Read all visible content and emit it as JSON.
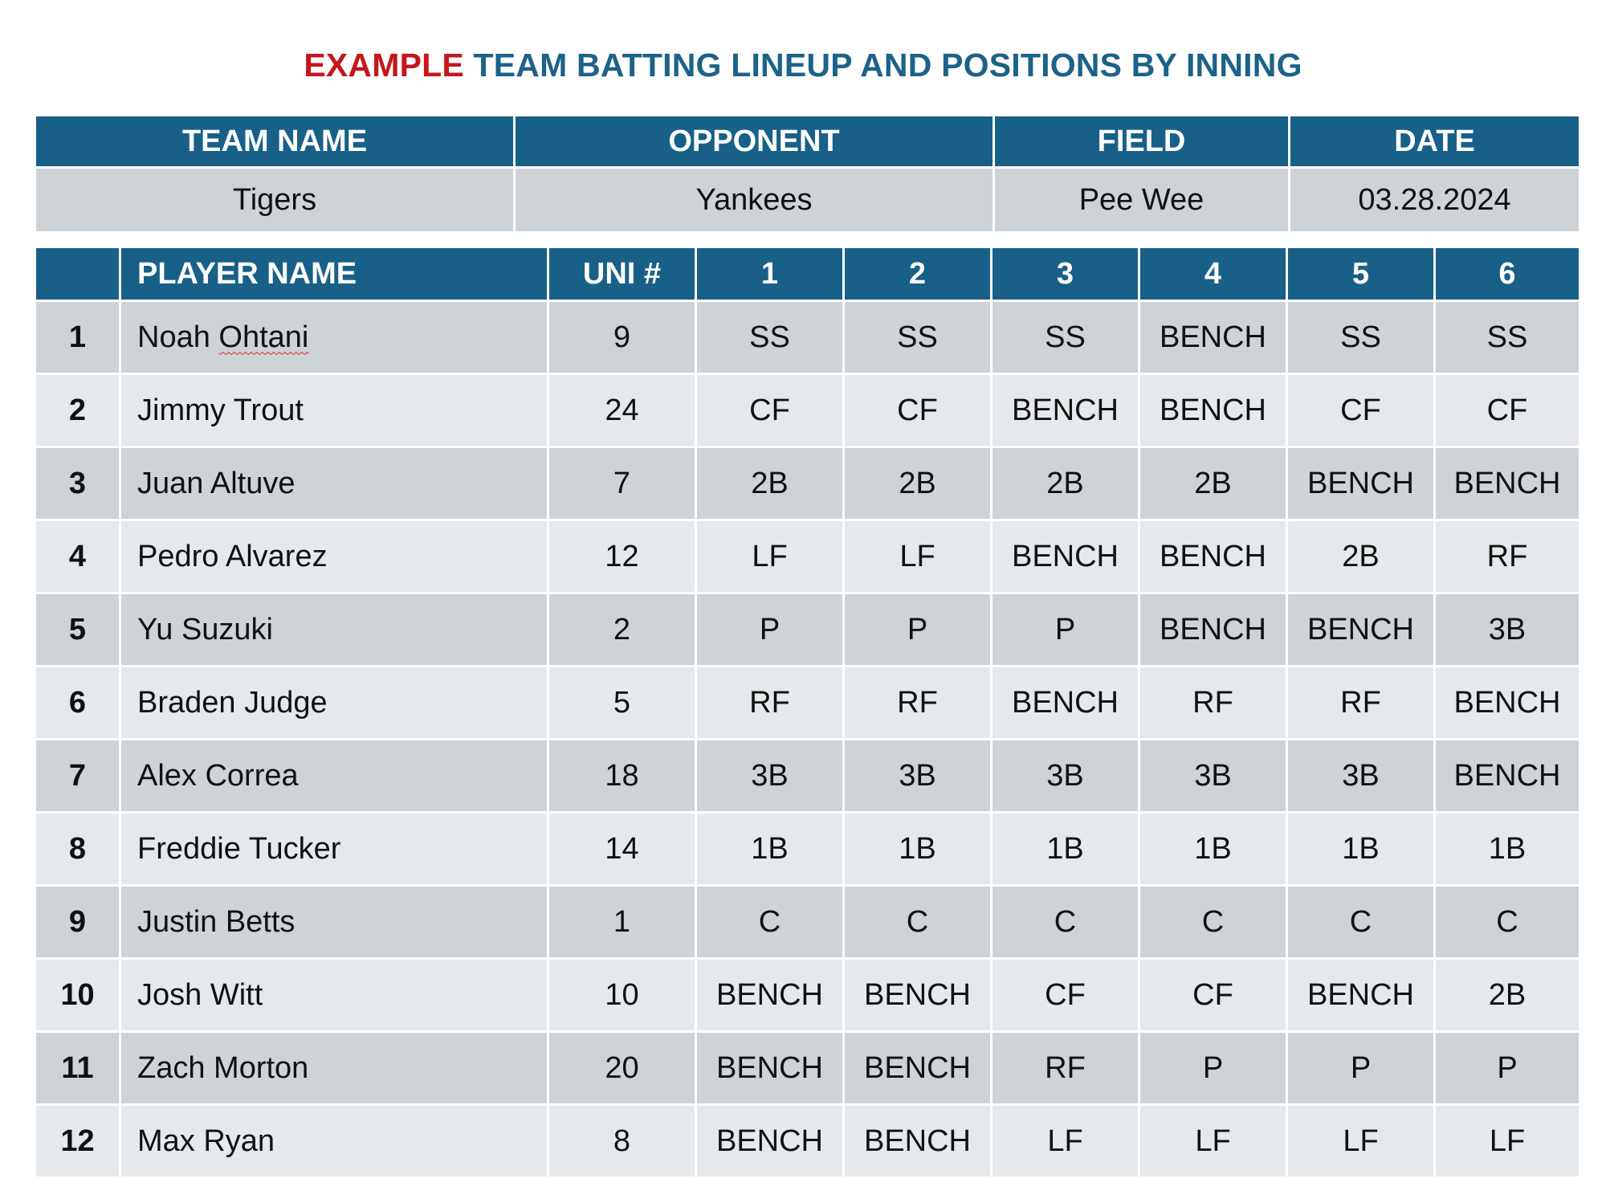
{
  "title": {
    "prefix": "EXAMPLE",
    "main": "TEAM BATTING LINEUP AND POSITIONS BY INNING"
  },
  "colors": {
    "accent_red": "#c4161c",
    "accent_blue": "#1c6289",
    "header_bg": "#186088",
    "row_dark": "#ced3d8",
    "row_light": "#e6e9ec"
  },
  "info": {
    "headers": [
      "TEAM NAME",
      "OPPONENT",
      "FIELD",
      "DATE"
    ],
    "values": [
      "Tigers",
      "Yankees",
      "Pee Wee",
      "03.28.2024"
    ]
  },
  "lineup": {
    "headers": [
      "",
      "PLAYER NAME",
      "UNI #",
      "1",
      "2",
      "3",
      "4",
      "5",
      "6"
    ],
    "rows": [
      {
        "order": "1",
        "name": "Noah Ohtani",
        "uni": "9",
        "innings": [
          "SS",
          "SS",
          "SS",
          "BENCH",
          "SS",
          "SS"
        ]
      },
      {
        "order": "2",
        "name": "Jimmy Trout",
        "uni": "24",
        "innings": [
          "CF",
          "CF",
          "BENCH",
          "BENCH",
          "CF",
          "CF"
        ]
      },
      {
        "order": "3",
        "name": "Juan Altuve",
        "uni": "7",
        "innings": [
          "2B",
          "2B",
          "2B",
          "2B",
          "BENCH",
          "BENCH"
        ]
      },
      {
        "order": "4",
        "name": "Pedro Alvarez",
        "uni": "12",
        "innings": [
          "LF",
          "LF",
          "BENCH",
          "BENCH",
          "2B",
          "RF"
        ]
      },
      {
        "order": "5",
        "name": "Yu Suzuki",
        "uni": "2",
        "innings": [
          "P",
          "P",
          "P",
          "BENCH",
          "BENCH",
          "3B"
        ]
      },
      {
        "order": "6",
        "name": "Braden Judge",
        "uni": "5",
        "innings": [
          "RF",
          "RF",
          "BENCH",
          "RF",
          "RF",
          "BENCH"
        ]
      },
      {
        "order": "7",
        "name": "Alex Correa",
        "uni": "18",
        "innings": [
          "3B",
          "3B",
          "3B",
          "3B",
          "3B",
          "BENCH"
        ]
      },
      {
        "order": "8",
        "name": "Freddie Tucker",
        "uni": "14",
        "innings": [
          "1B",
          "1B",
          "1B",
          "1B",
          "1B",
          "1B"
        ]
      },
      {
        "order": "9",
        "name": "Justin Betts",
        "uni": "1",
        "innings": [
          "C",
          "C",
          "C",
          "C",
          "C",
          "C"
        ]
      },
      {
        "order": "10",
        "name": "Josh Witt",
        "uni": "10",
        "innings": [
          "BENCH",
          "BENCH",
          "CF",
          "CF",
          "BENCH",
          "2B"
        ]
      },
      {
        "order": "11",
        "name": "Zach Morton",
        "uni": "20",
        "innings": [
          "BENCH",
          "BENCH",
          "RF",
          "P",
          "P",
          "P"
        ]
      },
      {
        "order": "12",
        "name": "Max Ryan",
        "uni": "8",
        "innings": [
          "BENCH",
          "BENCH",
          "LF",
          "LF",
          "LF",
          "LF"
        ]
      }
    ]
  }
}
